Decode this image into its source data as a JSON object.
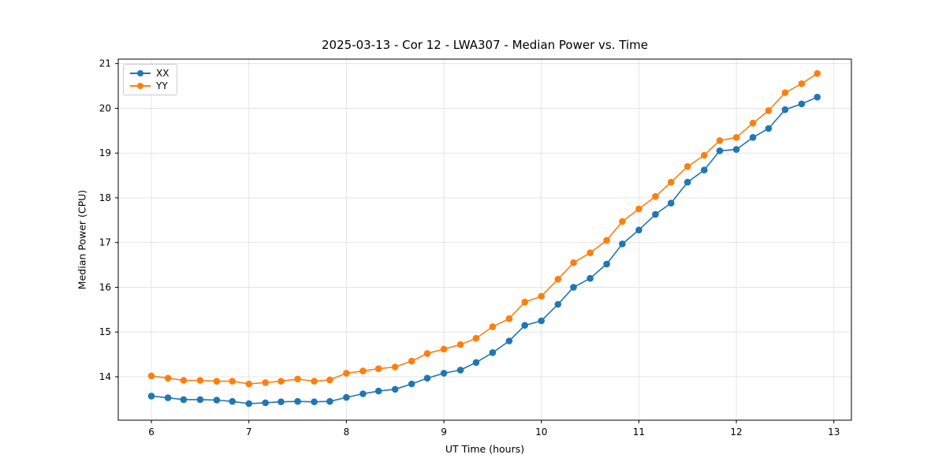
{
  "chart_data": {
    "type": "line",
    "title": "2025-03-13 - Cor 12 - LWA307 - Median Power vs. Time",
    "xlabel": "UT Time (hours)",
    "ylabel": "Median Power (CPU)",
    "xlim": [
      5.66,
      13.18
    ],
    "ylim": [
      13.03,
      21.1
    ],
    "x_ticks": [
      6,
      7,
      8,
      9,
      10,
      11,
      12,
      13
    ],
    "y_ticks": [
      14,
      15,
      16,
      17,
      18,
      19,
      20,
      21
    ],
    "grid": true,
    "grid_color": "#e0e0e0",
    "axis_color": "#000000",
    "legend_position": "upper-left",
    "x": [
      6.0,
      6.17,
      6.33,
      6.5,
      6.67,
      6.83,
      7.0,
      7.17,
      7.33,
      7.5,
      7.67,
      7.83,
      8.0,
      8.17,
      8.33,
      8.5,
      8.67,
      8.83,
      9.0,
      9.17,
      9.33,
      9.5,
      9.67,
      9.83,
      10.0,
      10.17,
      10.33,
      10.5,
      10.67,
      10.83,
      11.0,
      11.17,
      11.33,
      11.5,
      11.67,
      11.83,
      12.0,
      12.17,
      12.33,
      12.5,
      12.67,
      12.83
    ],
    "series": [
      {
        "name": "XX",
        "color": "#1f77b4",
        "values": [
          13.57,
          13.53,
          13.49,
          13.49,
          13.48,
          13.45,
          13.4,
          13.42,
          13.44,
          13.45,
          13.44,
          13.45,
          13.54,
          13.62,
          13.68,
          13.72,
          13.84,
          13.97,
          14.08,
          14.15,
          14.32,
          14.54,
          14.8,
          15.15,
          15.25,
          15.62,
          16.0,
          16.2,
          16.52,
          16.97,
          17.28,
          17.63,
          17.88,
          18.35,
          18.62,
          19.05,
          19.08,
          19.35,
          19.55,
          19.97,
          20.1,
          20.25
        ]
      },
      {
        "name": "YY",
        "color": "#ff7f0e",
        "values": [
          14.02,
          13.97,
          13.92,
          13.92,
          13.9,
          13.9,
          13.84,
          13.87,
          13.9,
          13.95,
          13.9,
          13.93,
          14.08,
          14.13,
          14.18,
          14.22,
          14.35,
          14.52,
          14.62,
          14.72,
          14.86,
          15.12,
          15.3,
          15.67,
          15.8,
          16.18,
          16.55,
          16.77,
          17.05,
          17.47,
          17.75,
          18.03,
          18.35,
          18.7,
          18.95,
          19.28,
          19.35,
          19.67,
          19.95,
          20.35,
          20.55,
          20.78
        ]
      }
    ]
  }
}
